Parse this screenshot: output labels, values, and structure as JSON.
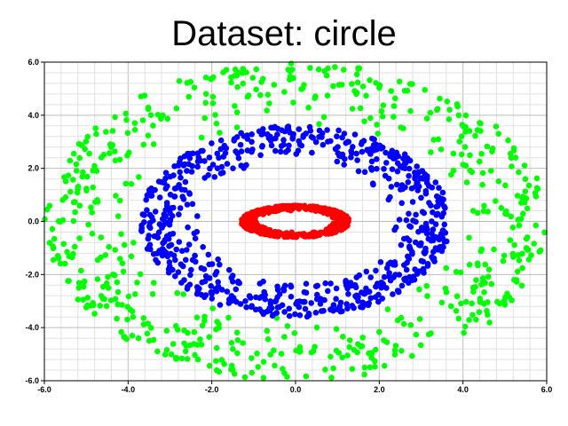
{
  "chart_data": {
    "type": "scatter",
    "title": "Dataset: circle",
    "xlabel": "",
    "ylabel": "",
    "xlim": [
      -6.0,
      6.0
    ],
    "ylim": [
      -6.0,
      6.0
    ],
    "grid": true,
    "x_ticks": [
      "-6.0",
      "-4.0",
      "-2.0",
      "0.0",
      "2.0",
      "4.0",
      "6.0"
    ],
    "y_ticks": [
      "6.0",
      "4.0",
      "2.0",
      "0.0",
      "-2.0",
      "-4.0",
      "-6.0"
    ],
    "series": [
      {
        "color": "#00ff00",
        "shape": "ring",
        "x_radius": [
          3.8,
          6.0
        ],
        "y_radius": [
          3.6,
          6.0
        ],
        "count": 600
      },
      {
        "color": "#0000ff",
        "shape": "ring",
        "x_radius": [
          2.3,
          3.7
        ],
        "y_radius": [
          2.2,
          3.6
        ],
        "count": 700
      },
      {
        "color": "#ff0000",
        "shape": "ring",
        "x_radius": [
          0.9,
          1.3
        ],
        "y_radius": [
          0.4,
          0.6
        ],
        "count": 500
      }
    ]
  }
}
